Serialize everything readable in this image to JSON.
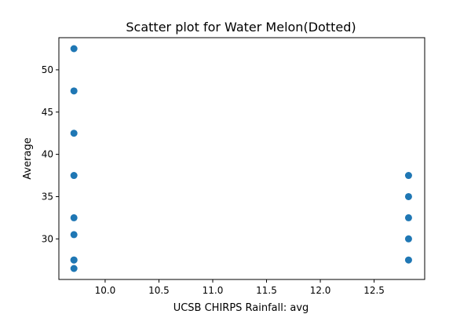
{
  "chart_data": {
    "type": "scatter",
    "title": "Scatter plot for Water Melon(Dotted)",
    "xlabel": "UCSB CHIRPS Rainfall: avg",
    "ylabel": "Average",
    "xlim": [
      9.57,
      12.97
    ],
    "ylim": [
      25.2,
      53.8
    ],
    "x_ticks": [
      "10.0",
      "10.5",
      "11.0",
      "11.5",
      "12.0",
      "12.5"
    ],
    "y_ticks": [
      "30",
      "35",
      "40",
      "45",
      "50"
    ],
    "grid": false,
    "marker_color": "#1f77b4",
    "series": [
      {
        "x": [
          9.71,
          9.71,
          9.71,
          9.71,
          9.71,
          9.71,
          9.71,
          9.71,
          9.71,
          12.82,
          12.82,
          12.82,
          12.82,
          12.82
        ],
        "y": [
          52.5,
          47.5,
          42.5,
          37.5,
          32.5,
          30.5,
          27.5,
          26.5,
          27.5,
          37.5,
          35.0,
          32.5,
          30.0,
          27.5
        ]
      }
    ]
  }
}
